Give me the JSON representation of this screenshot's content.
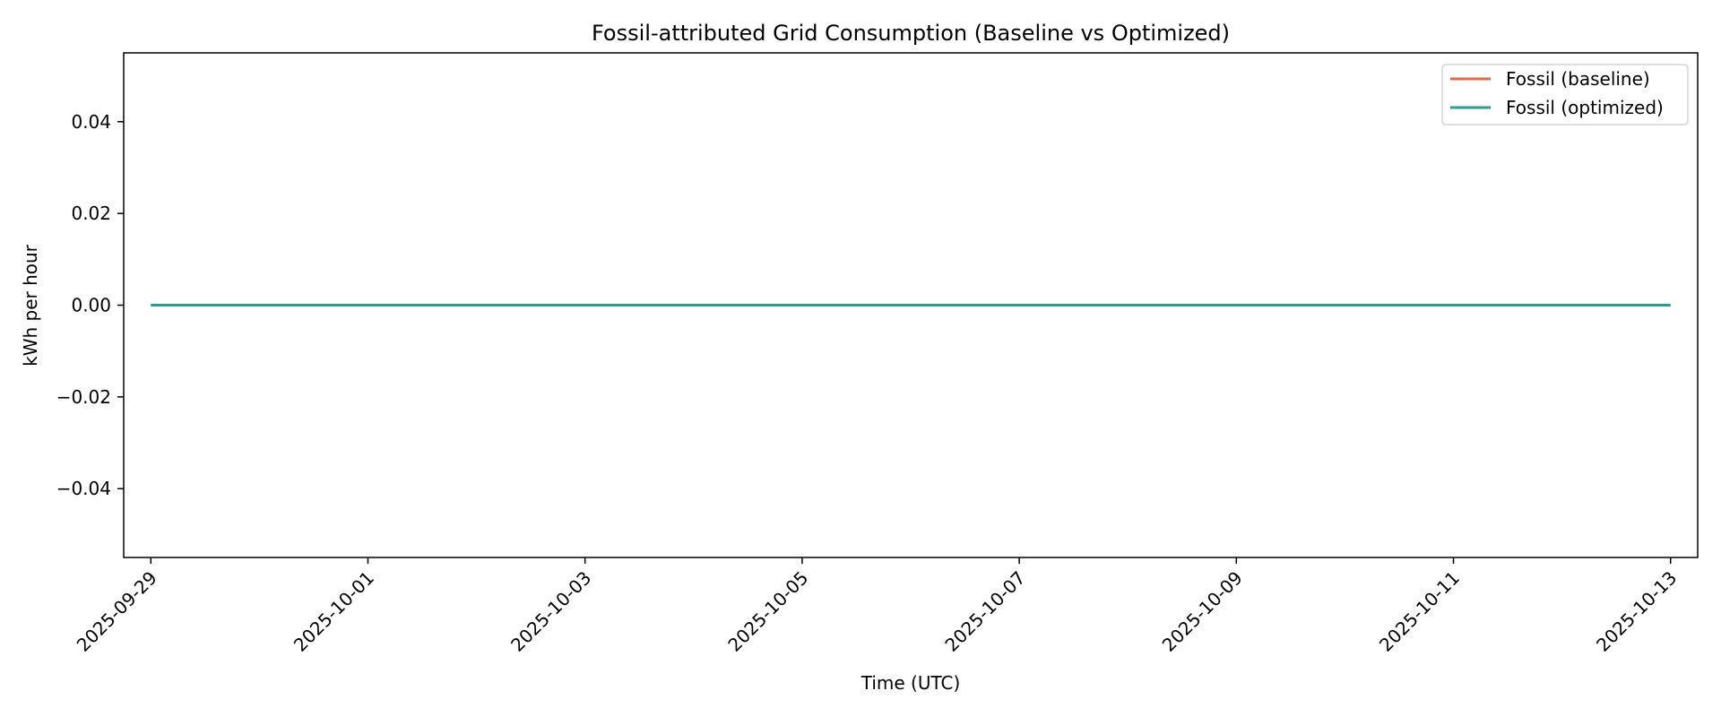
{
  "chart_data": {
    "type": "line",
    "title": "Fossil-attributed Grid Consumption (Baseline vs Optimized)",
    "xlabel": "Time (UTC)",
    "ylabel": "kWh per hour",
    "x_range": [
      "2025-09-28T18:00:00",
      "2025-10-13T06:00:00"
    ],
    "ylim": [
      -0.055,
      0.055
    ],
    "x_ticks": [
      "2025-09-29",
      "2025-10-01",
      "2025-10-03",
      "2025-10-05",
      "2025-10-07",
      "2025-10-09",
      "2025-10-11",
      "2025-10-13"
    ],
    "y_ticks": [
      0.04,
      0.02,
      0.0,
      -0.02,
      -0.04
    ],
    "y_tick_labels": [
      "0.04",
      "0.02",
      "0.00",
      "−0.02",
      "−0.04"
    ],
    "grid": false,
    "legend_position": "top-right",
    "series": [
      {
        "name": "Fossil (baseline)",
        "color": "#e8684a",
        "x": [
          "2025-09-29T00:00:00",
          "2025-10-13T00:00:00"
        ],
        "y": [
          0,
          0
        ]
      },
      {
        "name": "Fossil (optimized)",
        "color": "#2a9d8f",
        "x": [
          "2025-09-29T00:00:00",
          "2025-10-13T00:00:00"
        ],
        "y": [
          0,
          0
        ]
      }
    ]
  }
}
